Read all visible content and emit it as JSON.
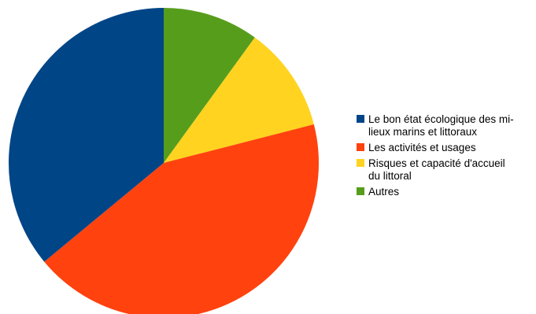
{
  "chart_data": {
    "type": "pie",
    "title": "",
    "start_angle_deg": 0,
    "direction": "clockwise",
    "legend_position": "right",
    "slices": [
      {
        "label": "Autres",
        "value": 10,
        "color": "#579d1c"
      },
      {
        "label": "Risques et capacité d'accueil du littoral",
        "value": 11,
        "color": "#ffd320"
      },
      {
        "label": "Les activités et usages",
        "value": 43,
        "color": "#ff420e"
      },
      {
        "label": "Le bon état écologique des milieux marins et littoraux",
        "value": 36,
        "color": "#004586"
      }
    ],
    "legend": [
      {
        "lines": [
          "Le bon état écologique des mi-",
          "lieux marins et littoraux"
        ],
        "color": "#004586"
      },
      {
        "lines": [
          "Les activités et usages"
        ],
        "color": "#ff420e"
      },
      {
        "lines": [
          "Risques et capacité d'accueil",
          "du littoral"
        ],
        "color": "#ffd320"
      },
      {
        "lines": [
          "Autres"
        ],
        "color": "#579d1c"
      }
    ]
  }
}
